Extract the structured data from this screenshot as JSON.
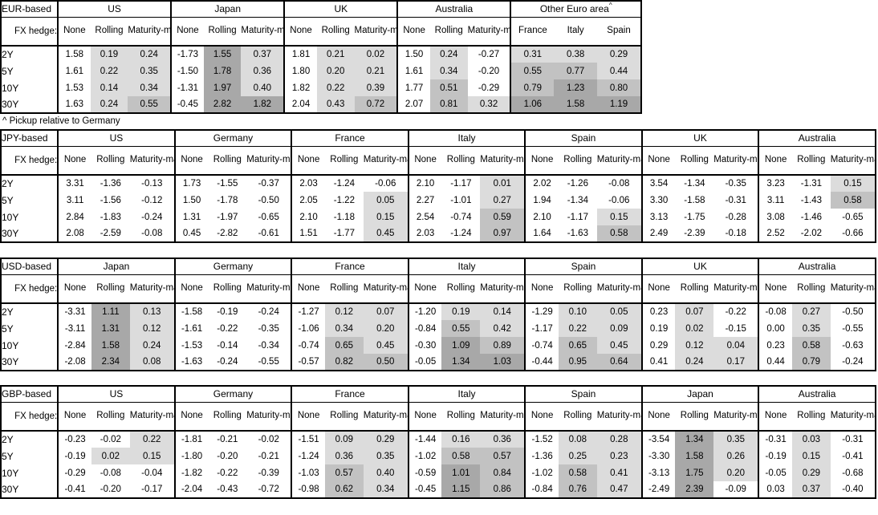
{
  "colors": {
    "shade_light": "#dcdcdc",
    "shade_medium": "#c2c2c2",
    "shade_dark": "#a8a8a8",
    "border": "#000000",
    "background": "#ffffff"
  },
  "shading": {
    "light_above": 0,
    "medium_from": 0.5,
    "dark_above": 1.0
  },
  "labels": {
    "fx_hedge": "FX hedge:",
    "hedge_columns": [
      "None",
      "Rolling",
      "Maturity-matched"
    ],
    "tenors": [
      "2Y",
      "5Y",
      "10Y",
      "30Y"
    ]
  },
  "tables": [
    {
      "base": "EUR-based",
      "layout": "eur",
      "footnote_after": "^ Pickup relative to Germany",
      "groups": [
        {
          "name": "US",
          "values": [
            [
              "1.58",
              "0.19",
              "0.24"
            ],
            [
              "1.61",
              "0.22",
              "0.35"
            ],
            [
              "1.53",
              "0.14",
              "0.34"
            ],
            [
              "1.63",
              "0.24",
              "0.55"
            ]
          ]
        },
        {
          "name": "Japan",
          "values": [
            [
              "-1.73",
              "1.55",
              "0.37"
            ],
            [
              "-1.50",
              "1.78",
              "0.36"
            ],
            [
              "-1.31",
              "1.97",
              "0.40"
            ],
            [
              "-0.45",
              "2.82",
              "1.82"
            ]
          ]
        },
        {
          "name": "UK",
          "values": [
            [
              "1.81",
              "0.21",
              "0.02"
            ],
            [
              "1.80",
              "0.20",
              "0.21"
            ],
            [
              "1.82",
              "0.22",
              "0.39"
            ],
            [
              "2.04",
              "0.43",
              "0.72"
            ]
          ]
        },
        {
          "name": "Australia",
          "values": [
            [
              "1.50",
              "0.24",
              "-0.27"
            ],
            [
              "1.61",
              "0.34",
              "-0.20"
            ],
            [
              "1.77",
              "0.51",
              "-0.29"
            ],
            [
              "2.07",
              "0.81",
              "0.32"
            ]
          ]
        },
        {
          "name": "Other Euro area",
          "superscript": "^",
          "sub": [
            "France",
            "Italy",
            "Spain"
          ],
          "shade_all": true,
          "values": [
            [
              "0.31",
              "0.38",
              "0.29"
            ],
            [
              "0.55",
              "0.77",
              "0.44"
            ],
            [
              "0.79",
              "1.23",
              "0.80"
            ],
            [
              "1.06",
              "1.58",
              "1.19"
            ]
          ]
        }
      ]
    },
    {
      "base": "JPY-based",
      "layout": "full",
      "groups": [
        {
          "name": "US",
          "values": [
            [
              "3.31",
              "-1.36",
              "-0.13"
            ],
            [
              "3.11",
              "-1.56",
              "-0.12"
            ],
            [
              "2.84",
              "-1.83",
              "-0.24"
            ],
            [
              "2.08",
              "-2.59",
              "-0.08"
            ]
          ]
        },
        {
          "name": "Germany",
          "values": [
            [
              "1.73",
              "-1.55",
              "-0.37"
            ],
            [
              "1.50",
              "-1.78",
              "-0.50"
            ],
            [
              "1.31",
              "-1.97",
              "-0.65"
            ],
            [
              "0.45",
              "-2.82",
              "-0.61"
            ]
          ]
        },
        {
          "name": "France",
          "values": [
            [
              "2.03",
              "-1.24",
              "-0.06"
            ],
            [
              "2.05",
              "-1.22",
              "0.05"
            ],
            [
              "2.10",
              "-1.18",
              "0.15"
            ],
            [
              "1.51",
              "-1.77",
              "0.45"
            ]
          ]
        },
        {
          "name": "Italy",
          "values": [
            [
              "2.10",
              "-1.17",
              "0.01"
            ],
            [
              "2.27",
              "-1.01",
              "0.27"
            ],
            [
              "2.54",
              "-0.74",
              "0.59"
            ],
            [
              "2.03",
              "-1.24",
              "0.97"
            ]
          ]
        },
        {
          "name": "Spain",
          "values": [
            [
              "2.02",
              "-1.26",
              "-0.08"
            ],
            [
              "1.94",
              "-1.34",
              "-0.06"
            ],
            [
              "2.10",
              "-1.17",
              "0.15"
            ],
            [
              "1.64",
              "-1.63",
              "0.58"
            ]
          ]
        },
        {
          "name": "UK",
          "values": [
            [
              "3.54",
              "-1.34",
              "-0.35"
            ],
            [
              "3.30",
              "-1.58",
              "-0.31"
            ],
            [
              "3.13",
              "-1.75",
              "-0.28"
            ],
            [
              "2.49",
              "-2.39",
              "-0.18"
            ]
          ]
        },
        {
          "name": "Australia",
          "values": [
            [
              "3.23",
              "-1.31",
              "0.15"
            ],
            [
              "3.11",
              "-1.43",
              "0.58"
            ],
            [
              "3.08",
              "-1.46",
              "-0.65"
            ],
            [
              "2.52",
              "-2.02",
              "-0.66"
            ]
          ]
        }
      ]
    },
    {
      "base": "USD-based",
      "layout": "full",
      "groups": [
        {
          "name": "Japan",
          "values": [
            [
              "-3.31",
              "1.11",
              "0.13"
            ],
            [
              "-3.11",
              "1.31",
              "0.12"
            ],
            [
              "-2.84",
              "1.58",
              "0.24"
            ],
            [
              "-2.08",
              "2.34",
              "0.08"
            ]
          ]
        },
        {
          "name": "Germany",
          "values": [
            [
              "-1.58",
              "-0.19",
              "-0.24"
            ],
            [
              "-1.61",
              "-0.22",
              "-0.35"
            ],
            [
              "-1.53",
              "-0.14",
              "-0.34"
            ],
            [
              "-1.63",
              "-0.24",
              "-0.55"
            ]
          ]
        },
        {
          "name": "France",
          "values": [
            [
              "-1.27",
              "0.12",
              "0.07"
            ],
            [
              "-1.06",
              "0.34",
              "0.20"
            ],
            [
              "-0.74",
              "0.65",
              "0.45"
            ],
            [
              "-0.57",
              "0.82",
              "0.50"
            ]
          ]
        },
        {
          "name": "Italy",
          "values": [
            [
              "-1.20",
              "0.19",
              "0.14"
            ],
            [
              "-0.84",
              "0.55",
              "0.42"
            ],
            [
              "-0.30",
              "1.09",
              "0.89"
            ],
            [
              "-0.05",
              "1.34",
              "1.03"
            ]
          ]
        },
        {
          "name": "Spain",
          "values": [
            [
              "-1.29",
              "0.10",
              "0.05"
            ],
            [
              "-1.17",
              "0.22",
              "0.09"
            ],
            [
              "-0.74",
              "0.65",
              "0.45"
            ],
            [
              "-0.44",
              "0.95",
              "0.64"
            ]
          ]
        },
        {
          "name": "UK",
          "values": [
            [
              "0.23",
              "0.07",
              "-0.22"
            ],
            [
              "0.19",
              "0.02",
              "-0.15"
            ],
            [
              "0.29",
              "0.12",
              "0.04"
            ],
            [
              "0.41",
              "0.24",
              "0.17"
            ]
          ]
        },
        {
          "name": "Australia",
          "values": [
            [
              "-0.08",
              "0.27",
              "-0.50"
            ],
            [
              "0.00",
              "0.35",
              "-0.55"
            ],
            [
              "0.23",
              "0.58",
              "-0.63"
            ],
            [
              "0.44",
              "0.79",
              "-0.24"
            ]
          ]
        }
      ]
    },
    {
      "base": "GBP-based",
      "layout": "full",
      "groups": [
        {
          "name": "US",
          "values": [
            [
              "-0.23",
              "-0.02",
              "0.22"
            ],
            [
              "-0.19",
              "0.02",
              "0.15"
            ],
            [
              "-0.29",
              "-0.08",
              "-0.04"
            ],
            [
              "-0.41",
              "-0.20",
              "-0.17"
            ]
          ]
        },
        {
          "name": "Germany",
          "values": [
            [
              "-1.81",
              "-0.21",
              "-0.02"
            ],
            [
              "-1.80",
              "-0.20",
              "-0.21"
            ],
            [
              "-1.82",
              "-0.22",
              "-0.39"
            ],
            [
              "-2.04",
              "-0.43",
              "-0.72"
            ]
          ]
        },
        {
          "name": "France",
          "values": [
            [
              "-1.51",
              "0.09",
              "0.29"
            ],
            [
              "-1.24",
              "0.36",
              "0.35"
            ],
            [
              "-1.03",
              "0.57",
              "0.40"
            ],
            [
              "-0.98",
              "0.62",
              "0.34"
            ]
          ]
        },
        {
          "name": "Italy",
          "values": [
            [
              "-1.44",
              "0.16",
              "0.36"
            ],
            [
              "-1.02",
              "0.58",
              "0.57"
            ],
            [
              "-0.59",
              "1.01",
              "0.84"
            ],
            [
              "-0.45",
              "1.15",
              "0.86"
            ]
          ]
        },
        {
          "name": "Spain",
          "values": [
            [
              "-1.52",
              "0.08",
              "0.28"
            ],
            [
              "-1.36",
              "0.25",
              "0.23"
            ],
            [
              "-1.02",
              "0.58",
              "0.41"
            ],
            [
              "-0.84",
              "0.76",
              "0.47"
            ]
          ]
        },
        {
          "name": "Japan",
          "values": [
            [
              "-3.54",
              "1.34",
              "0.35"
            ],
            [
              "-3.30",
              "1.58",
              "0.26"
            ],
            [
              "-3.13",
              "1.75",
              "0.20"
            ],
            [
              "-2.49",
              "2.39",
              "-0.09"
            ]
          ]
        },
        {
          "name": "Australia",
          "values": [
            [
              "-0.31",
              "0.03",
              "-0.31"
            ],
            [
              "-0.19",
              "0.15",
              "-0.41"
            ],
            [
              "-0.05",
              "0.29",
              "-0.68"
            ],
            [
              "0.03",
              "0.37",
              "-0.40"
            ]
          ]
        }
      ]
    }
  ]
}
